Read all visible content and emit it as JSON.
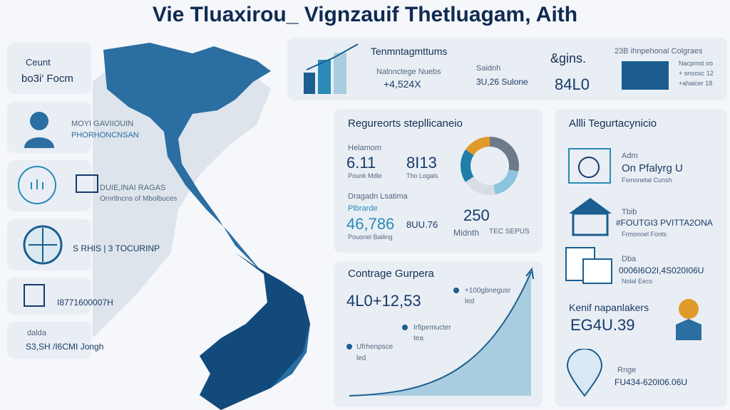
{
  "header": {
    "title": "Vie Tluaxirou_ Vignzauif Thetluagam, Aith"
  },
  "left_cards": [
    {
      "label": "Ceunt",
      "value": "bo3i' Focm"
    },
    {
      "label": "MOYI GAVIIOUIN",
      "value": "PHORHONCNSAN"
    },
    {
      "label": "DUIE,INAI RAGAS",
      "value": "Ornrtlncns of Mbolbuces"
    },
    {
      "label": "S RHIS | 3 TOCURINP"
    },
    {
      "label": "I8771600007H"
    },
    {
      "label": "dalda",
      "value": "S3,SH /I6CMI Jongh"
    }
  ],
  "top_bar": {
    "title": "Tenmntagmttums",
    "item1_label": "Nalnnctege Nuebs",
    "item1_value": "+4,524X",
    "item2_label": "Saidnh",
    "item2_value": "3U,26 Sulone",
    "item3_label": "&gins.",
    "item3_value": "84L0",
    "item4_title": "23B ihnpehonal Colgraes",
    "item4_lines": [
      "Nacpmst oo",
      "+ snoosc 12",
      "+ahaicer 18"
    ]
  },
  "requirements": {
    "title": "Regureorts stepllicaneio",
    "a_label": "Helamom",
    "a_value": "6.11",
    "a_note": "Pounk Mdle",
    "b_value": "8I13",
    "b_note": "Tho Logals",
    "c_label": "Dragadn Lsatima",
    "c_sub": "Plbrarde",
    "c_value": "46,786",
    "c_note": "Pouonel Bailing",
    "d_value": "8UU.76",
    "e_value": "250",
    "e_note": "Midnth",
    "e_note2": "TEC SEPUS"
  },
  "coverage": {
    "title": "Contrage Gurpera",
    "value": "4L0+12,53",
    "notes": [
      {
        "label": "+100gbnegusr",
        "sub": "led"
      },
      {
        "label": "Irfipemucter",
        "sub": "tea"
      },
      {
        "label": "Ufrhenpsce",
        "sub": "led"
      }
    ]
  },
  "right_panel": {
    "title": "Allli Tegurtacynicio",
    "items": [
      {
        "label": "Adm",
        "value": "On Pfalyrg U",
        "note": "Fsmonetal Cunsh"
      },
      {
        "label": "Tbib",
        "value": "#FOUTGI3 PVITTA2ONA",
        "note": "Frmonoel Fonts"
      },
      {
        "label": "Dba",
        "value": "0006I6O2I,4S020I06U",
        "note": "Nolal Eecs"
      },
      {
        "label": "Kenif napanlakers",
        "value": "EG4U.39"
      },
      {
        "label": "Rnge",
        "value": "FU434-620I06.06U"
      }
    ]
  }
}
